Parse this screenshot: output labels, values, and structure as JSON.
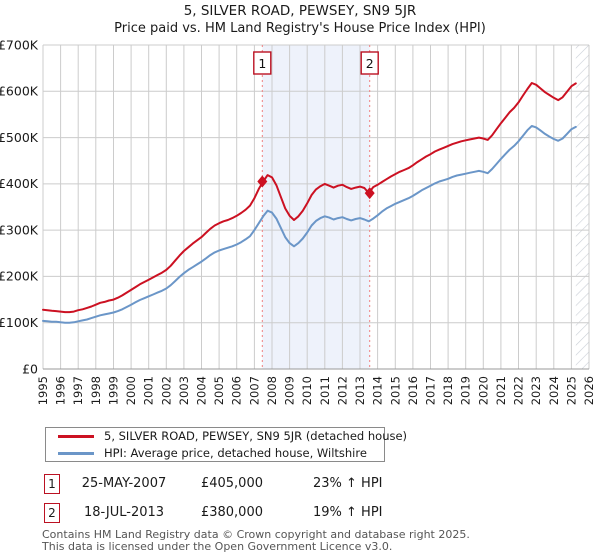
{
  "title": "5, SILVER ROAD, PEWSEY, SN9 5JR",
  "subtitle": "Price paid vs. HM Land Registry's House Price Index (HPI)",
  "chart_data": {
    "type": "line",
    "x_start": 1995,
    "x_step": 0.25,
    "xlim": [
      1995,
      2026
    ],
    "ylim": [
      0,
      700
    ],
    "y_unit": "£K",
    "grid": true,
    "legend_position": "bottom-left",
    "future_from": 2025.25,
    "grid_color": "#cccccc",
    "axis_color": "#999999",
    "text_color": "#1a1a1a",
    "shade_color": "#eef2fb",
    "hatch_color": "#c9ced6",
    "sale_line_color": "#f08080",
    "marker_box_border": "#bb1122",
    "y_ticks": [
      {
        "value": 0,
        "label": "£0"
      },
      {
        "value": 100,
        "label": "£100K"
      },
      {
        "value": 200,
        "label": "£200K"
      },
      {
        "value": 300,
        "label": "£300K"
      },
      {
        "value": 400,
        "label": "£400K"
      },
      {
        "value": 500,
        "label": "£500K"
      },
      {
        "value": 600,
        "label": "£600K"
      },
      {
        "value": 700,
        "label": "£700K"
      }
    ],
    "x_tick_labels": [
      "1995",
      "1996",
      "1997",
      "1998",
      "1999",
      "2000",
      "2001",
      "2002",
      "2003",
      "2004",
      "2005",
      "2006",
      "2007",
      "2008",
      "2009",
      "2010",
      "2011",
      "2012",
      "2013",
      "2014",
      "2015",
      "2016",
      "2017",
      "2018",
      "2019",
      "2020",
      "2021",
      "2022",
      "2023",
      "2024",
      "2025",
      "2026"
    ],
    "series": [
      {
        "name": "5, SILVER ROAD, PEWSEY, SN9 5JR (detached house)",
        "color": "#cc1122",
        "values": [
          128,
          127,
          126,
          125,
          124,
          123,
          123,
          124,
          127,
          129,
          132,
          135,
          139,
          143,
          145,
          148,
          150,
          154,
          159,
          165,
          171,
          177,
          183,
          188,
          193,
          198,
          203,
          208,
          214,
          223,
          234,
          245,
          255,
          263,
          271,
          278,
          285,
          294,
          303,
          310,
          315,
          319,
          322,
          326,
          331,
          337,
          344,
          353,
          369,
          389,
          405,
          419,
          414,
          397,
          372,
          347,
          331,
          322,
          330,
          342,
          358,
          376,
          388,
          395,
          400,
          396,
          392,
          396,
          398,
          393,
          389,
          392,
          394,
          391,
          380,
          393,
          398,
          404,
          410,
          416,
          421,
          426,
          430,
          434,
          440,
          447,
          453,
          459,
          464,
          470,
          474,
          478,
          482,
          486,
          489,
          492,
          494,
          496,
          498,
          500,
          498,
          495,
          505,
          518,
          531,
          543,
          555,
          564,
          576,
          591,
          605,
          618,
          614,
          606,
          598,
          592,
          586,
          581,
          587,
          599,
          611,
          617
        ]
      },
      {
        "name": "HPI: Average price, detached house, Wiltshire",
        "color": "#6b96c8",
        "values": [
          104,
          103,
          102,
          102,
          101,
          100,
          100,
          101,
          103,
          105,
          107,
          110,
          113,
          116,
          118,
          120,
          122,
          125,
          129,
          134,
          139,
          144,
          149,
          153,
          157,
          161,
          165,
          169,
          174,
          181,
          190,
          199,
          207,
          214,
          220,
          226,
          232,
          239,
          246,
          252,
          256,
          259,
          262,
          265,
          269,
          274,
          280,
          287,
          300,
          315,
          330,
          342,
          338,
          325,
          305,
          285,
          272,
          265,
          272,
          282,
          295,
          310,
          320,
          326,
          330,
          327,
          323,
          326,
          328,
          324,
          321,
          324,
          326,
          323,
          319,
          325,
          332,
          340,
          347,
          352,
          357,
          361,
          365,
          369,
          374,
          380,
          386,
          391,
          396,
          401,
          405,
          408,
          411,
          415,
          418,
          420,
          422,
          424,
          426,
          428,
          426,
          423,
          432,
          443,
          454,
          464,
          474,
          482,
          492,
          504,
          516,
          525,
          522,
          515,
          508,
          502,
          497,
          493,
          498,
          508,
          518,
          523
        ]
      }
    ],
    "sales_markers": [
      {
        "n": "1",
        "x": 2007.45,
        "value_k": 405,
        "date": "25-MAY-2007",
        "price": "£405,000",
        "hpi_diff": "23% ↑ HPI"
      },
      {
        "n": "2",
        "x": 2013.55,
        "value_k": 380,
        "date": "18-JUL-2013",
        "price": "£380,000",
        "hpi_diff": "19% ↑ HPI"
      }
    ]
  },
  "footer": {
    "line1": "Contains HM Land Registry data © Crown copyright and database right 2025.",
    "line2": "This data is licensed under the Open Government Licence v3.0."
  }
}
